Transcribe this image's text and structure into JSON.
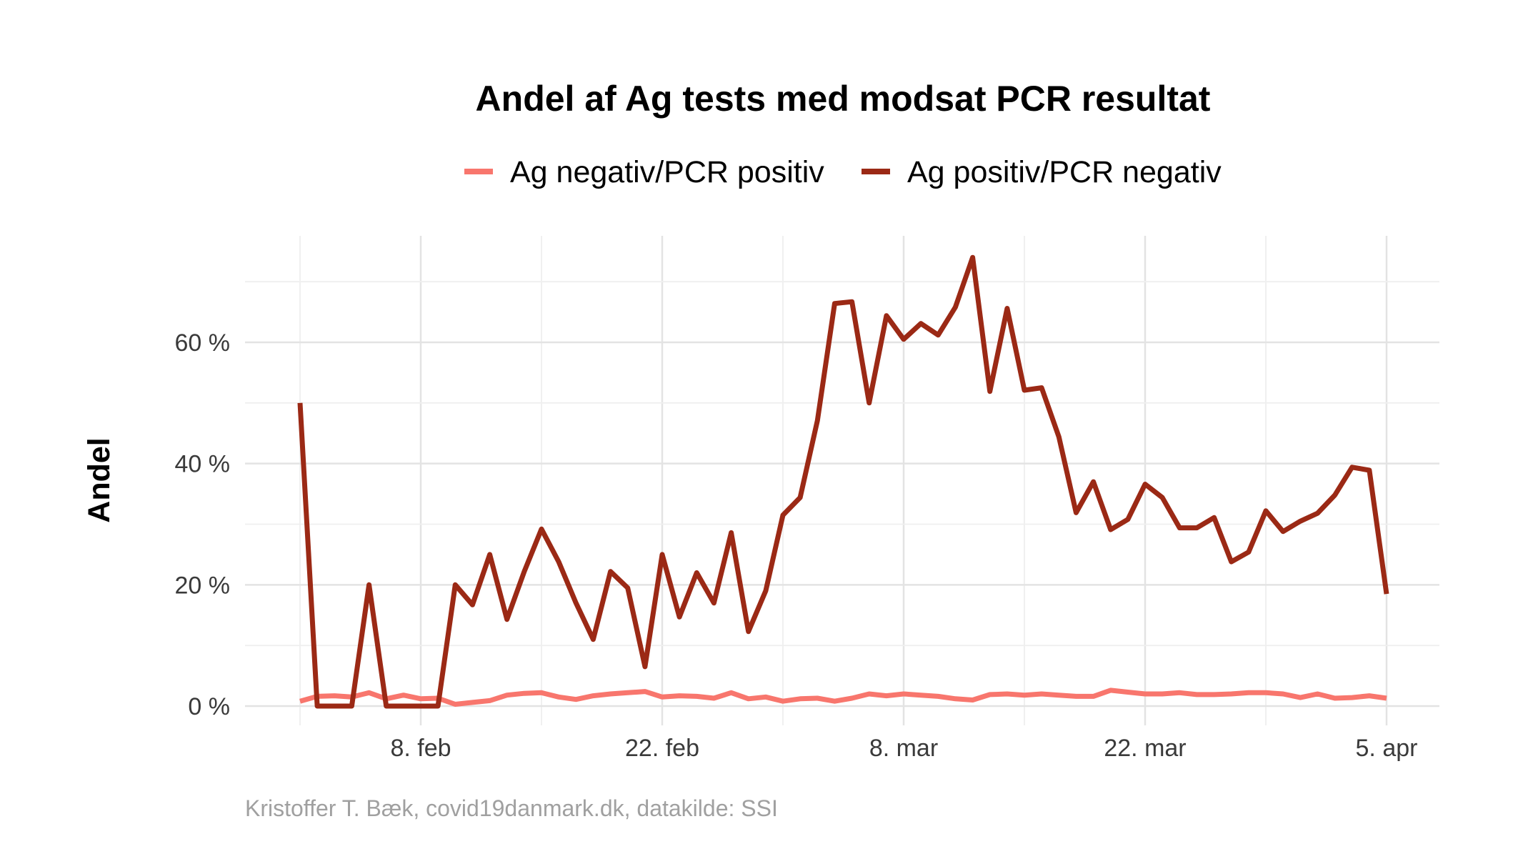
{
  "chart_data": {
    "type": "line",
    "title": "Andel af Ag tests med modsat PCR resultat",
    "xlabel": "",
    "ylabel": "Andel",
    "caption": "Kristoffer T. Bæk, covid19danmark.dk, datakilde: SSI",
    "x": [
      "2021-02-01",
      "2021-02-02",
      "2021-02-03",
      "2021-02-04",
      "2021-02-05",
      "2021-02-06",
      "2021-02-07",
      "2021-02-08",
      "2021-02-09",
      "2021-02-10",
      "2021-02-11",
      "2021-02-12",
      "2021-02-13",
      "2021-02-14",
      "2021-02-15",
      "2021-02-16",
      "2021-02-17",
      "2021-02-18",
      "2021-02-19",
      "2021-02-20",
      "2021-02-21",
      "2021-02-22",
      "2021-02-23",
      "2021-02-24",
      "2021-02-25",
      "2021-02-26",
      "2021-02-27",
      "2021-02-28",
      "2021-03-01",
      "2021-03-02",
      "2021-03-03",
      "2021-03-04",
      "2021-03-05",
      "2021-03-06",
      "2021-03-07",
      "2021-03-08",
      "2021-03-09",
      "2021-03-10",
      "2021-03-11",
      "2021-03-12",
      "2021-03-13",
      "2021-03-14",
      "2021-03-15",
      "2021-03-16",
      "2021-03-17",
      "2021-03-18",
      "2021-03-19",
      "2021-03-20",
      "2021-03-21",
      "2021-03-22",
      "2021-03-23",
      "2021-03-24",
      "2021-03-25",
      "2021-03-26",
      "2021-03-27",
      "2021-03-28",
      "2021-03-29",
      "2021-03-30",
      "2021-03-31",
      "2021-04-01",
      "2021-04-02",
      "2021-04-03",
      "2021-04-04",
      "2021-04-05"
    ],
    "series": [
      {
        "name": "Ag negativ/PCR positiv",
        "color": "#f8766d",
        "values": [
          0.8,
          1.6,
          1.7,
          1.5,
          2.2,
          1.2,
          1.8,
          1.2,
          1.3,
          0.3,
          0.6,
          0.9,
          1.8,
          2.1,
          2.2,
          1.5,
          1.1,
          1.7,
          2.0,
          2.2,
          2.4,
          1.5,
          1.7,
          1.6,
          1.3,
          2.2,
          1.2,
          1.5,
          0.8,
          1.2,
          1.3,
          0.8,
          1.3,
          2.0,
          1.7,
          2.0,
          1.8,
          1.6,
          1.2,
          1.0,
          1.9,
          2.0,
          1.8,
          2.0,
          1.8,
          1.6,
          1.6,
          2.6,
          2.3,
          2.0,
          2.0,
          2.2,
          1.9,
          1.9,
          2.0,
          2.2,
          2.2,
          2.0,
          1.4,
          2.0,
          1.3,
          1.4,
          1.7,
          1.3
        ]
      },
      {
        "name": "Ag positiv/PCR negativ",
        "color": "#9b2915",
        "values": [
          50.0,
          0.0,
          0.0,
          0.0,
          20.0,
          0.0,
          0.0,
          0.0,
          0.0,
          20.0,
          16.7,
          25.0,
          14.3,
          22.2,
          29.2,
          23.8,
          17.0,
          11.0,
          22.2,
          19.5,
          6.5,
          25.0,
          14.7,
          22.0,
          17.0,
          28.6,
          12.3,
          19.0,
          31.5,
          34.4,
          47.1,
          66.4,
          66.7,
          50.0,
          64.4,
          60.5,
          63.1,
          61.2,
          65.8,
          74.0,
          51.9,
          65.6,
          52.1,
          52.5,
          44.4,
          31.9,
          37.0,
          29.1,
          30.8,
          36.6,
          34.4,
          29.4,
          29.4,
          31.1,
          23.8,
          25.4,
          32.2,
          28.8,
          30.5,
          31.8,
          34.8,
          39.4,
          38.9,
          18.5
        ]
      }
    ],
    "x_ticks": [
      "8. feb",
      "22. feb",
      "8. mar",
      "22. mar",
      "5. apr"
    ],
    "x_tick_dates": [
      "2021-02-08",
      "2021-02-22",
      "2021-03-08",
      "2021-03-22",
      "2021-04-05"
    ],
    "x_minor_tick_dates": [
      "2021-02-01",
      "2021-02-15",
      "2021-03-01",
      "2021-03-15",
      "2021-03-29"
    ],
    "y_ticks": [
      "0 %",
      "20 %",
      "40 %",
      "60 %"
    ],
    "y_tick_values": [
      0,
      20,
      40,
      60
    ],
    "ylim": [
      -3,
      78
    ],
    "grid": true,
    "legend_position": "top"
  }
}
